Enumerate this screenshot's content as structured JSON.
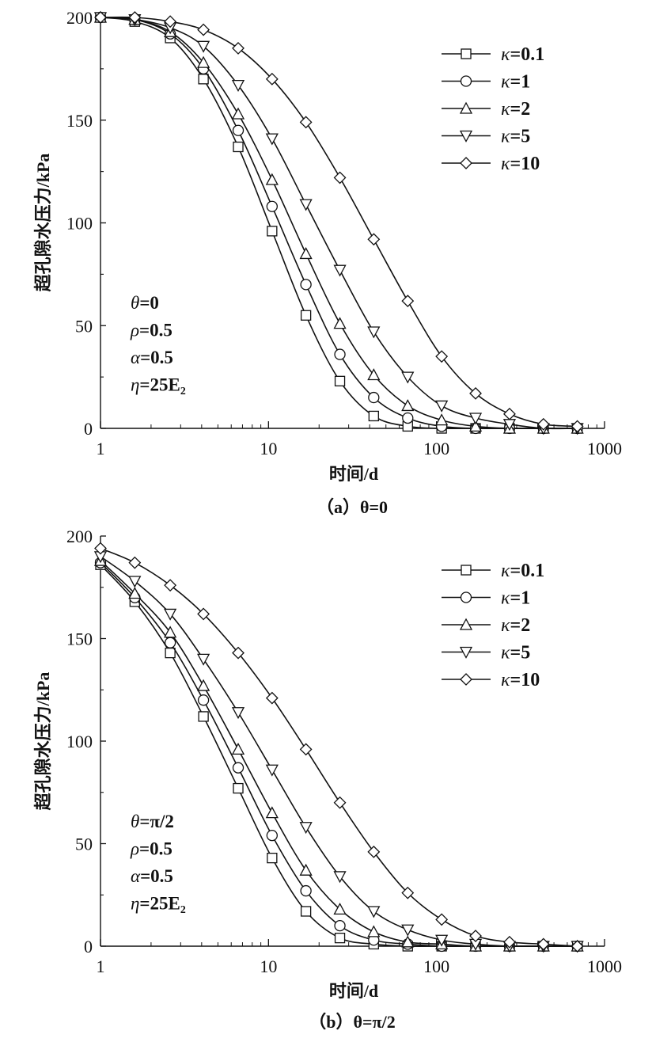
{
  "chart_data": [
    {
      "type": "line",
      "panel_caption": "（a）θ=0",
      "xlabel": "时间/d",
      "ylabel": "超孔隙水压力/kPa",
      "x_scale": "log",
      "xlim": [
        1,
        1000
      ],
      "ylim": [
        0,
        200
      ],
      "x_ticks": [
        "1",
        "10",
        "100",
        "1000"
      ],
      "y_ticks": [
        "0",
        "50",
        "100",
        "150",
        "200"
      ],
      "x": [
        1,
        1.6,
        2.6,
        4.1,
        6.6,
        10.5,
        16.7,
        26.6,
        42.3,
        67.4,
        107.3,
        170.8,
        272,
        433,
        689
      ],
      "series": [
        {
          "name": "κ=0.1",
          "marker": "square",
          "values": [
            200,
            198,
            190,
            170,
            137,
            96,
            55,
            23,
            6,
            1,
            0,
            0,
            0,
            0,
            0
          ]
        },
        {
          "name": "κ=1",
          "marker": "circle",
          "values": [
            200,
            199,
            192,
            175,
            145,
            108,
            70,
            36,
            15,
            5,
            1,
            0,
            0,
            0,
            0
          ]
        },
        {
          "name": "κ=2",
          "marker": "triangle-up",
          "values": [
            200,
            199,
            193,
            178,
            153,
            121,
            85,
            51,
            26,
            11,
            4,
            1,
            0,
            0,
            0
          ]
        },
        {
          "name": "κ=5",
          "marker": "triangle-down",
          "values": [
            200,
            199,
            195,
            186,
            167,
            141,
            109,
            77,
            47,
            25,
            11,
            5,
            2,
            0,
            0
          ]
        },
        {
          "name": "κ=10",
          "marker": "diamond",
          "values": [
            200,
            200,
            198,
            194,
            185,
            170,
            149,
            122,
            92,
            62,
            35,
            17,
            7,
            2,
            1
          ]
        }
      ],
      "annotations": [
        {
          "sym": "θ",
          "rest": "=0"
        },
        {
          "sym": "ρ",
          "rest": "=0.5"
        },
        {
          "sym": "α",
          "rest": "=0.5"
        },
        {
          "sym": "η",
          "rest": "=25E₂"
        }
      ],
      "legend_position": "top-right"
    },
    {
      "type": "line",
      "panel_caption": "（b）θ=π/2",
      "xlabel": "时间/d",
      "ylabel": "超孔隙水压力/kPa",
      "x_scale": "log",
      "xlim": [
        1,
        1000
      ],
      "ylim": [
        0,
        200
      ],
      "x_ticks": [
        "1",
        "10",
        "100",
        "1000"
      ],
      "y_ticks": [
        "0",
        "50",
        "100",
        "150",
        "200"
      ],
      "x": [
        1,
        1.6,
        2.6,
        4.1,
        6.6,
        10.5,
        16.7,
        26.6,
        42.3,
        67.4,
        107.3,
        170.8,
        272,
        433,
        689
      ],
      "series": [
        {
          "name": "κ=0.1",
          "marker": "square",
          "values": [
            186,
            168,
            143,
            112,
            77,
            43,
            17,
            4,
            1,
            0,
            0,
            0,
            0,
            0,
            0
          ]
        },
        {
          "name": "κ=1",
          "marker": "circle",
          "values": [
            187,
            170,
            148,
            120,
            87,
            54,
            27,
            10,
            3,
            1,
            0,
            0,
            0,
            0,
            0
          ]
        },
        {
          "name": "κ=2",
          "marker": "triangle-up",
          "values": [
            188,
            172,
            153,
            127,
            96,
            65,
            37,
            18,
            7,
            2,
            1,
            0,
            0,
            0,
            0
          ]
        },
        {
          "name": "κ=5",
          "marker": "triangle-down",
          "values": [
            190,
            178,
            162,
            140,
            114,
            86,
            58,
            34,
            17,
            8,
            3,
            1,
            0,
            0,
            0
          ]
        },
        {
          "name": "κ=10",
          "marker": "diamond",
          "values": [
            194,
            187,
            176,
            162,
            143,
            121,
            96,
            70,
            46,
            26,
            13,
            5,
            2,
            1,
            0
          ]
        }
      ],
      "annotations": [
        {
          "sym": "θ",
          "rest": "=π/2"
        },
        {
          "sym": "ρ",
          "rest": "=0.5"
        },
        {
          "sym": "α",
          "rest": "=0.5"
        },
        {
          "sym": "η",
          "rest": "=25E₂"
        }
      ],
      "legend_position": "top-right"
    }
  ]
}
